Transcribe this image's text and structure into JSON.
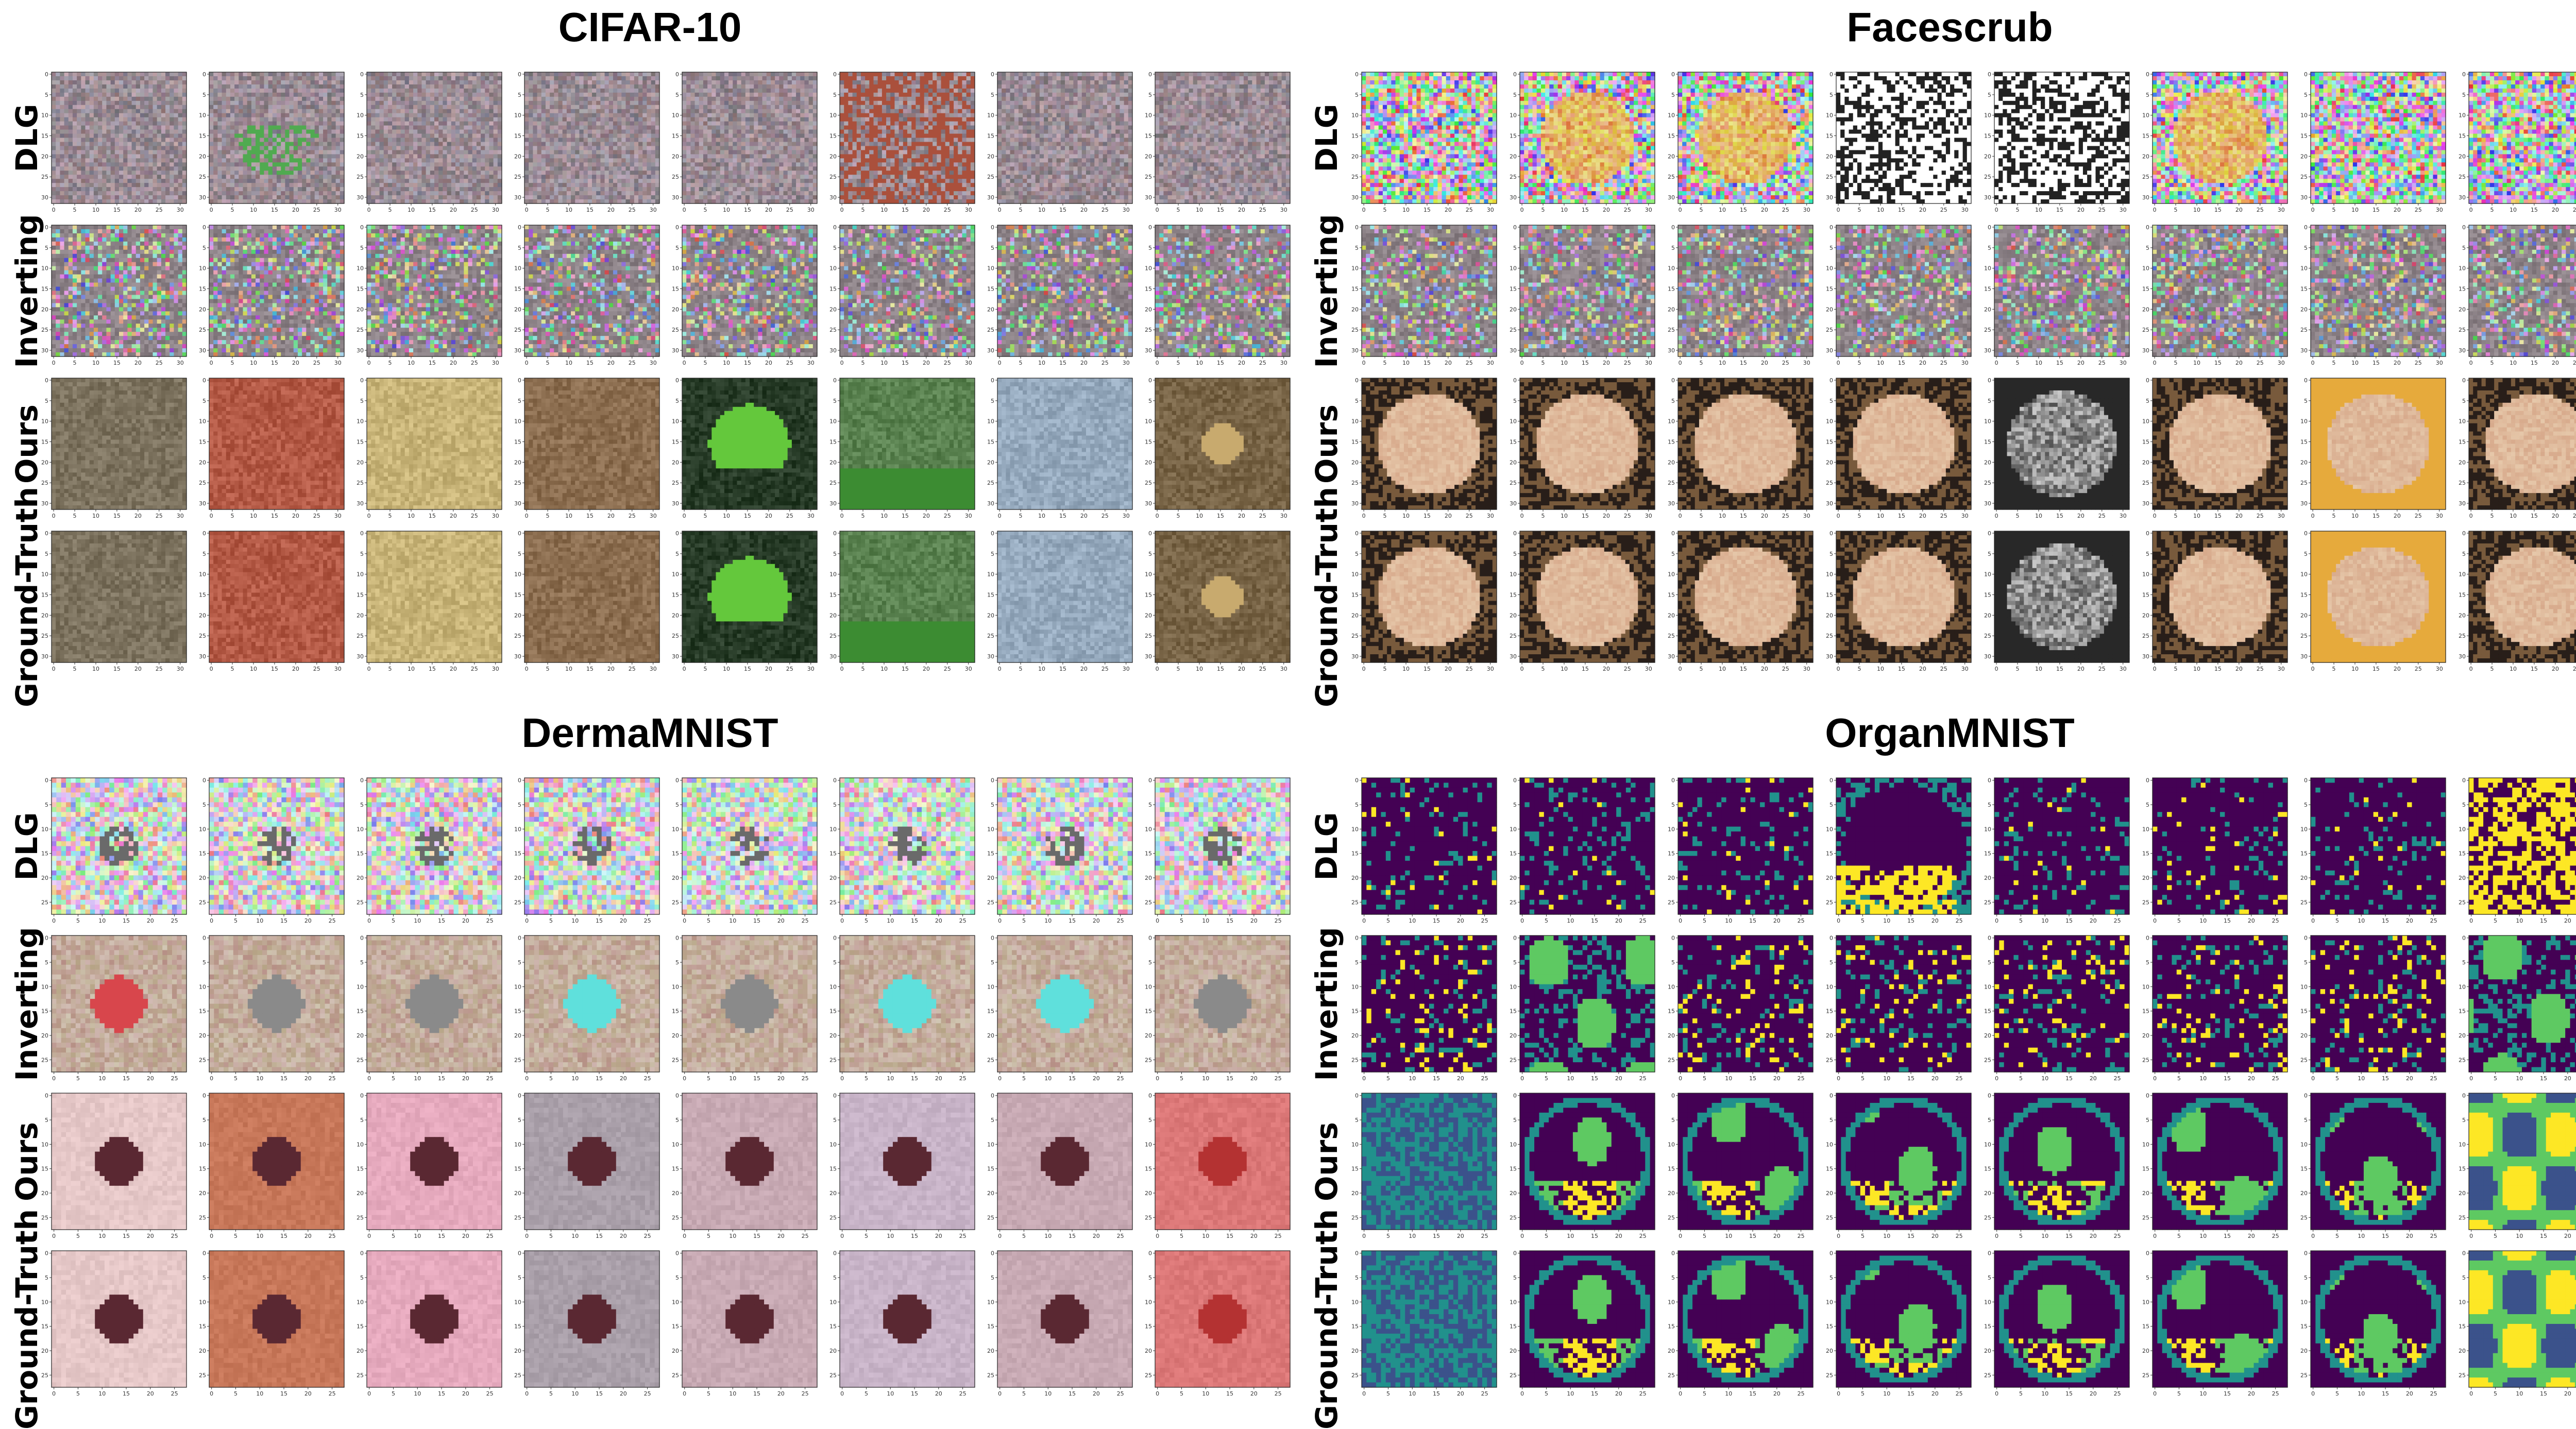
{
  "figure": {
    "panels": [
      {
        "title": "CIFAR-10",
        "kind": "rgb",
        "tick_labels": [
          "0",
          "5",
          "10",
          "15",
          "20",
          "25",
          "30"
        ],
        "rows": [
          "DLG",
          "Inverting",
          "Ours",
          "Ground-Truth"
        ]
      },
      {
        "title": "Facescrub",
        "kind": "rgb",
        "tick_labels": [
          "0",
          "5",
          "10",
          "15",
          "20",
          "25",
          "30"
        ],
        "rows": [
          "DLG",
          "Inverting",
          "Ours",
          "Ground-Truth"
        ]
      },
      {
        "title": "DermaMNIST",
        "kind": "rgb",
        "tick_labels": [
          "0",
          "5",
          "10",
          "15",
          "20",
          "25"
        ],
        "rows": [
          "DLG",
          "Inverting",
          "Ours",
          "Ground-Truth"
        ]
      },
      {
        "title": "OrganMNIST",
        "kind": "viridis",
        "tick_labels": [
          "0",
          "5",
          "10",
          "15",
          "20",
          "25"
        ],
        "rows": [
          "DLG",
          "Inverting",
          "Ours",
          "Ground-Truth"
        ]
      }
    ],
    "columns_per_row": 8,
    "colors": {
      "viridis_dark": "#440154",
      "viridis_teal": "#21918c",
      "viridis_green": "#5ec962",
      "viridis_yellow": "#fde725",
      "noise_gray": "#7f7f7f"
    }
  }
}
